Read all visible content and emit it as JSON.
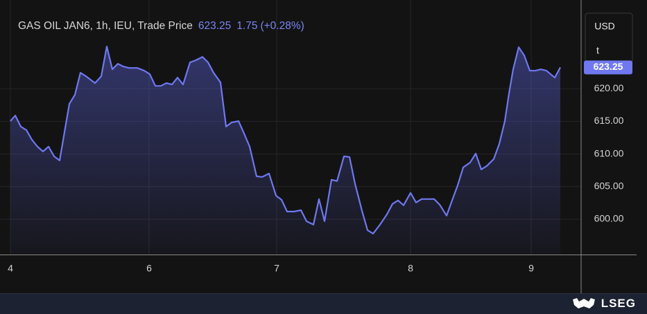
{
  "chart_data": {
    "type": "line",
    "title": "GAS OIL JAN6, 1h, IEU, Trade Price",
    "change": 1.75,
    "change_pct": "(+0.28%)",
    "currency": "USD",
    "unit": "t",
    "brand": "LSEG",
    "x": [
      0,
      0.875,
      1.875,
      2.875,
      3.875,
      4.875,
      5.875,
      6.875,
      7.875,
      8.875,
      10.625,
      11.625,
      12.625,
      13.625,
      15.25,
      16.375,
      17.375,
      18.375,
      19.375,
      20.375,
      21.375,
      22.875,
      24.125,
      25.125,
      26.125,
      27.125,
      28.125,
      29.125,
      30.125,
      31.125,
      32.375,
      33.375,
      34.625,
      35.625,
      36.625,
      37.875,
      38.875,
      39.875,
      41.125,
      42.125,
      43.125,
      44.375,
      45.375,
      46.625,
      47.875,
      48.875,
      49.875,
      51.125,
      52.375,
      53.375,
      54.625,
      55.625,
      56.625,
      57.875,
      58.875,
      60.125,
      61.125,
      62.125,
      63.375,
      64.375,
      65.375,
      66.625,
      67.875,
      68.875,
      69.875,
      70.875,
      72.125,
      73.125,
      74.125,
      75.125,
      76.375,
      77.375,
      78.625,
      79.625,
      80.625,
      81.625,
      82.875,
      83.875,
      84.875,
      85.875,
      87.125,
      88.125,
      89.125,
      89.875,
      90.625,
      91.625,
      92.625,
      93.625,
      94.625,
      95.625,
      96.625,
      98.125,
      99.125
    ],
    "series": [
      {
        "color": "#6f78f0",
        "values": [
          615.03,
          615.88,
          614.19,
          613.66,
          612.18,
          611.12,
          610.38,
          611.12,
          609.64,
          609.0,
          617.67,
          619.05,
          622.43,
          621.9,
          620.85,
          621.9,
          626.45,
          622.96,
          623.81,
          623.38,
          623.17,
          623.17,
          622.75,
          622.22,
          620.42,
          620.42,
          620.85,
          620.63,
          621.69,
          620.63,
          624.02,
          624.33,
          624.86,
          624.02,
          622.43,
          620.95,
          614.19,
          614.82,
          615.03,
          613.13,
          611.12,
          606.58,
          606.47,
          607.0,
          603.62,
          602.98,
          601.18,
          601.18,
          601.39,
          599.7,
          599.18,
          603.09,
          599.7,
          606.05,
          605.84,
          609.64,
          609.54,
          605.42,
          601.29,
          598.33,
          597.8,
          599.18,
          600.76,
          602.35,
          602.88,
          602.14,
          604.04,
          602.56,
          603.09,
          603.09,
          603.09,
          602.24,
          600.55,
          602.88,
          605.2,
          607.95,
          608.69,
          610.06,
          607.63,
          608.16,
          609.22,
          611.54,
          615.03,
          619.26,
          622.96,
          626.34,
          625.07,
          622.75,
          622.75,
          622.96,
          622.75,
          621.69,
          623.25
        ]
      }
    ],
    "xlim": [
      -1.875,
      102.875
    ],
    "xticks": [
      {
        "value": 0,
        "label": "4"
      },
      {
        "value": 25,
        "label": "6"
      },
      {
        "value": 48,
        "label": "7"
      },
      {
        "value": 72.125,
        "label": "8"
      },
      {
        "value": 93.875,
        "label": "9"
      }
    ],
    "ylim": [
      594.6,
      632.3
    ],
    "yticks": [
      {
        "value": 600,
        "label": "600.00"
      },
      {
        "value": 605,
        "label": "605.00"
      },
      {
        "value": 610,
        "label": "610.00"
      },
      {
        "value": 615,
        "label": "615.00"
      },
      {
        "value": 620,
        "label": "620.00"
      }
    ],
    "grid": true
  }
}
